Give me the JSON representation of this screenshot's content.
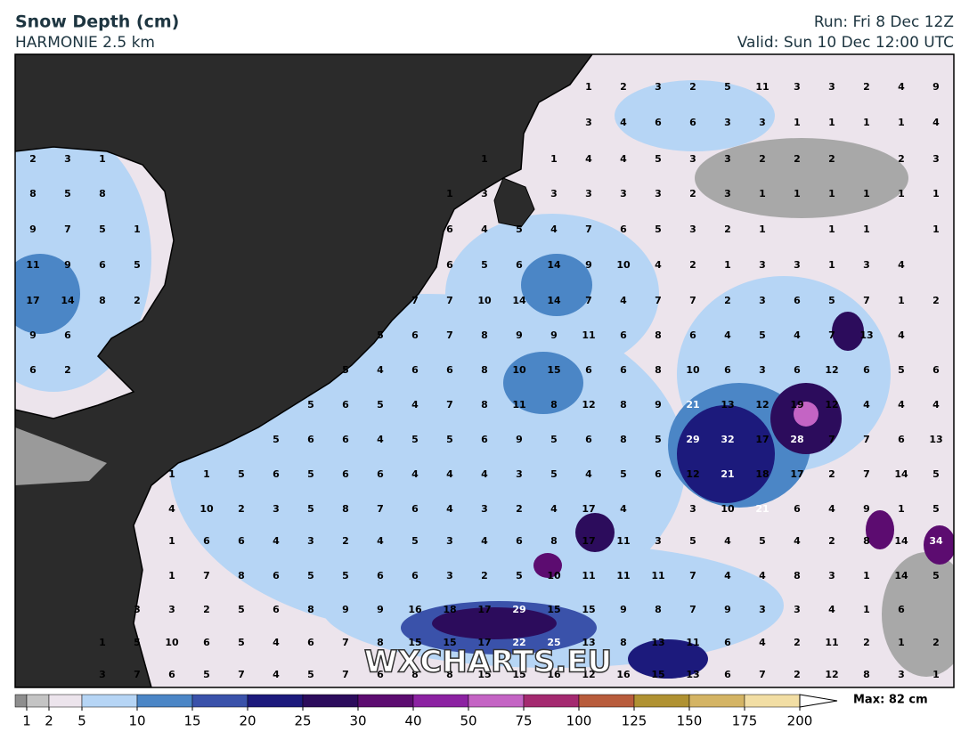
{
  "header": {
    "title": "Snow Depth (cm)",
    "model": "HARMONIE 2.5 km",
    "run": "Run: Fri 8 Dec 12Z",
    "valid": "Valid: Sun 10 Dec 12:00 UTC"
  },
  "watermark": "WXCHARTS.EU",
  "grid_labels": [
    [
      null,
      null,
      null,
      null,
      null,
      null,
      null,
      null,
      null,
      null,
      null,
      null,
      null,
      null,
      null,
      null,
      1,
      2,
      3,
      2,
      5,
      11,
      3,
      3,
      2,
      4,
      9
    ],
    [
      null,
      null,
      null,
      null,
      null,
      null,
      null,
      null,
      null,
      null,
      null,
      null,
      null,
      null,
      null,
      null,
      3,
      4,
      6,
      6,
      3,
      3,
      1,
      1,
      1,
      1,
      4
    ],
    [
      2,
      3,
      1,
      null,
      null,
      null,
      null,
      null,
      null,
      null,
      null,
      null,
      null,
      1,
      null,
      1,
      4,
      4,
      5,
      3,
      3,
      2,
      2,
      2,
      null,
      2,
      3
    ],
    [
      8,
      5,
      8,
      null,
      null,
      null,
      null,
      null,
      null,
      null,
      null,
      null,
      1,
      3,
      null,
      3,
      3,
      3,
      3,
      2,
      3,
      1,
      1,
      1,
      1,
      1,
      1
    ],
    [
      9,
      7,
      5,
      1,
      null,
      null,
      null,
      null,
      null,
      null,
      null,
      null,
      6,
      4,
      5,
      4,
      7,
      6,
      5,
      3,
      2,
      1,
      null,
      1,
      1,
      null,
      1
    ],
    [
      11,
      9,
      6,
      5,
      null,
      null,
      null,
      null,
      null,
      null,
      null,
      null,
      6,
      5,
      6,
      14,
      9,
      10,
      4,
      2,
      1,
      3,
      3,
      1,
      3,
      4,
      null
    ],
    [
      17,
      14,
      8,
      2,
      null,
      null,
      null,
      null,
      null,
      null,
      null,
      7,
      7,
      10,
      14,
      14,
      7,
      4,
      7,
      7,
      2,
      3,
      6,
      5,
      7,
      1,
      2
    ],
    [
      9,
      6,
      null,
      null,
      null,
      null,
      null,
      null,
      null,
      null,
      5,
      6,
      7,
      8,
      9,
      9,
      11,
      6,
      8,
      6,
      4,
      5,
      4,
      7,
      13,
      4,
      null
    ],
    [
      6,
      2,
      null,
      null,
      null,
      null,
      null,
      null,
      null,
      5,
      4,
      6,
      6,
      8,
      10,
      15,
      6,
      6,
      8,
      10,
      6,
      3,
      6,
      12,
      6,
      5,
      6
    ],
    [
      null,
      null,
      null,
      null,
      null,
      null,
      null,
      null,
      5,
      6,
      5,
      4,
      7,
      8,
      11,
      8,
      12,
      8,
      9,
      21,
      13,
      12,
      19,
      12,
      4,
      4,
      4
    ],
    [
      null,
      null,
      null,
      null,
      null,
      null,
      null,
      5,
      6,
      6,
      4,
      5,
      5,
      6,
      9,
      5,
      6,
      8,
      5,
      29,
      32,
      17,
      28,
      7,
      7,
      6,
      13
    ],
    [
      null,
      null,
      null,
      null,
      1,
      1,
      5,
      6,
      5,
      6,
      6,
      4,
      4,
      4,
      3,
      5,
      4,
      5,
      6,
      12,
      21,
      18,
      17,
      2,
      7,
      14,
      5
    ],
    [
      null,
      null,
      null,
      null,
      4,
      10,
      2,
      3,
      5,
      8,
      7,
      6,
      4,
      3,
      2,
      4,
      17,
      4,
      null,
      3,
      10,
      21,
      6,
      4,
      9,
      1,
      5
    ],
    [
      null,
      null,
      null,
      null,
      1,
      6,
      6,
      4,
      3,
      2,
      4,
      5,
      3,
      4,
      6,
      8,
      17,
      11,
      3,
      5,
      4,
      5,
      4,
      2,
      8,
      14,
      34
    ],
    [
      null,
      null,
      null,
      null,
      1,
      7,
      8,
      6,
      5,
      5,
      6,
      6,
      3,
      2,
      5,
      10,
      11,
      11,
      11,
      7,
      4,
      4,
      8,
      3,
      1,
      14,
      5
    ],
    [
      null,
      null,
      null,
      3,
      3,
      2,
      5,
      6,
      8,
      9,
      9,
      16,
      18,
      17,
      29,
      15,
      15,
      9,
      8,
      7,
      9,
      3,
      3,
      4,
      1,
      6,
      null
    ],
    [
      null,
      null,
      1,
      5,
      10,
      6,
      5,
      4,
      6,
      7,
      8,
      15,
      15,
      17,
      22,
      25,
      13,
      8,
      13,
      11,
      6,
      4,
      2,
      11,
      2,
      1,
      2
    ],
    [
      null,
      null,
      3,
      7,
      6,
      5,
      7,
      4,
      5,
      7,
      6,
      8,
      8,
      15,
      15,
      16,
      12,
      16,
      15,
      13,
      6,
      7,
      2,
      12,
      8,
      3,
      1
    ]
  ],
  "colorbar": {
    "ticks": [
      1,
      2,
      5,
      10,
      15,
      20,
      25,
      30,
      40,
      50,
      75,
      100,
      125,
      150,
      175,
      200
    ],
    "colors": [
      "#8e8e8e",
      "#c4c4c4",
      "#ece4ec",
      "#b6d5f5",
      "#4b86c6",
      "#3a52aa",
      "#1c1a7c",
      "#2c0c5c",
      "#5c0c70",
      "#8c22a2",
      "#c464c4",
      "#a42a70",
      "#b85c3c",
      "#b09232",
      "#d4b464",
      "#f2dea4"
    ],
    "max_label": "Max: 82 cm"
  }
}
